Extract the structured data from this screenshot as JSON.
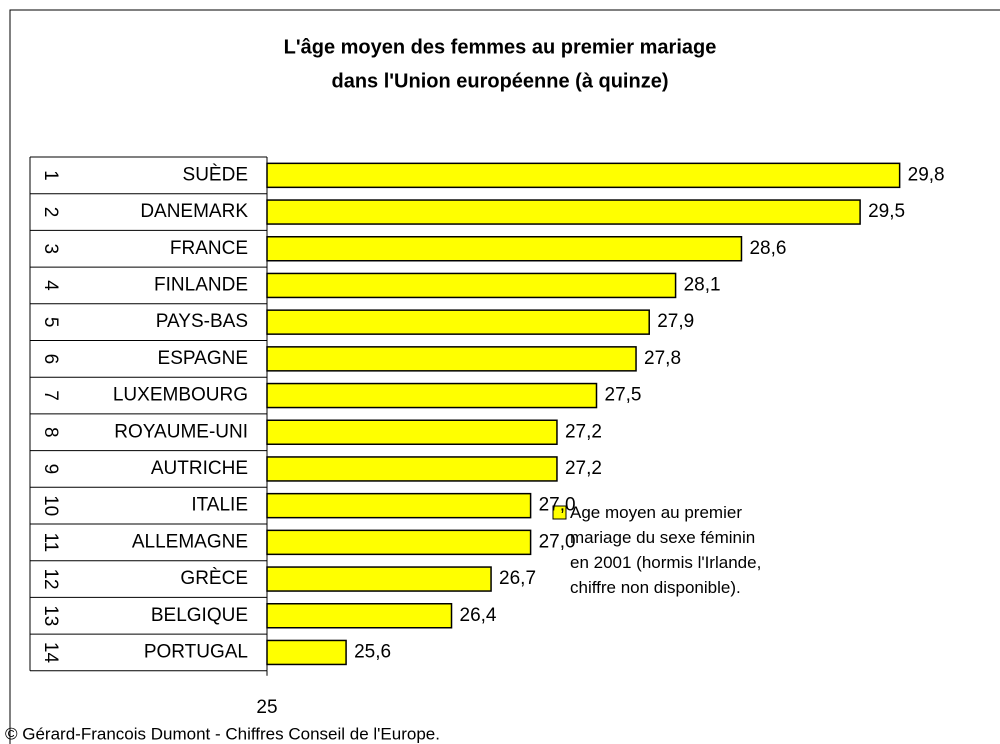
{
  "chart_data": {
    "type": "barh",
    "title": [
      "L'âge moyen des femmes au premier mariage",
      "dans l'Union européenne (à quinze)"
    ],
    "ranks": [
      1,
      2,
      3,
      4,
      5,
      6,
      7,
      8,
      9,
      10,
      11,
      12,
      13,
      14
    ],
    "categories": [
      "SUÈDE",
      "DANEMARK",
      "FRANCE",
      "FINLANDE",
      "PAYS-BAS",
      "ESPAGNE",
      "LUXEMBOURG",
      "ROYAUME-UNI",
      "AUTRICHE",
      "ITALIE",
      "ALLEMAGNE",
      "GRÈCE",
      "BELGIQUE",
      "PORTUGAL"
    ],
    "series": [
      {
        "name": "Age moyen au premier mariage du sexe féminin en 2001 (hormis l'Irlande, chiffre non disponible).",
        "color": "#ffff00",
        "values": [
          29.8,
          29.5,
          28.6,
          28.1,
          27.9,
          27.8,
          27.5,
          27.2,
          27.2,
          27.0,
          27.0,
          26.7,
          26.4,
          25.6
        ],
        "value_labels": [
          "29,8",
          "29,5",
          "28,6",
          "28,1",
          "27,9",
          "27,8",
          "27,5",
          "27,2",
          "27,2",
          "27,0",
          "27,0",
          "26,7",
          "26,4",
          "25,6"
        ]
      }
    ],
    "xlim": [
      25,
      30
    ],
    "xticks": [
      25
    ],
    "footer": "© Gérard-Francois Dumont - Chiffres Conseil de l'Europe."
  }
}
